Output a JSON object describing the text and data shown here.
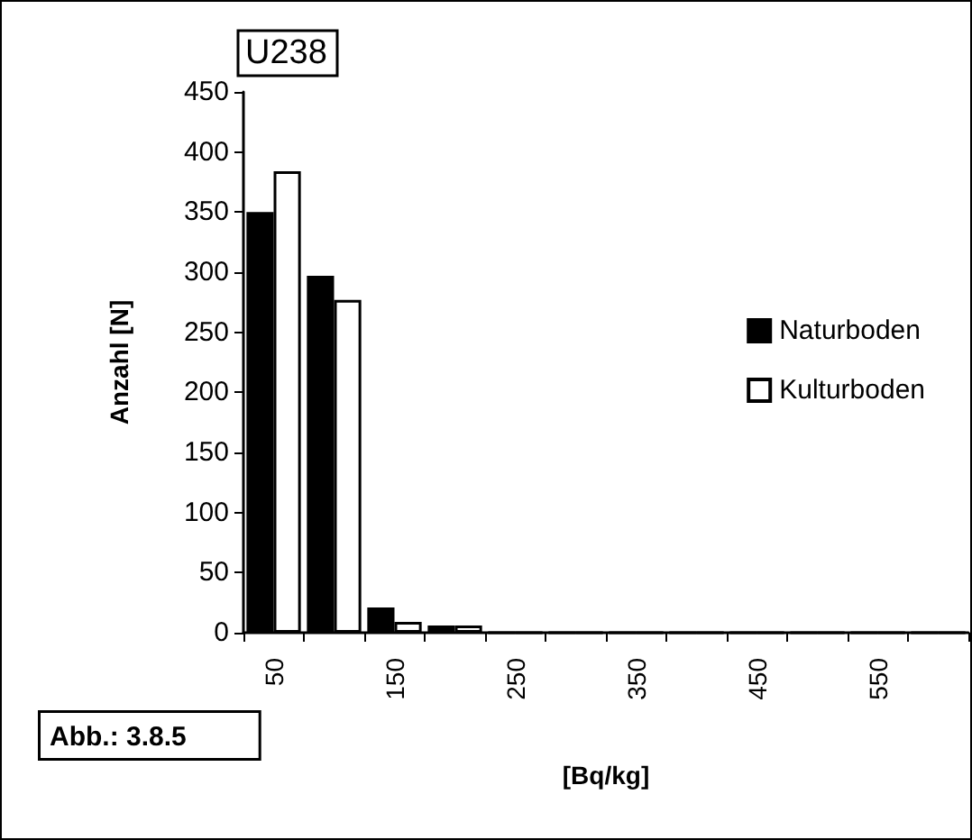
{
  "chart_data": {
    "type": "bar",
    "title": "U238",
    "xlabel": "[Bq/kg]",
    "ylabel": "Anzahl [N]",
    "annotations": [
      "Abb.: 3.8.5"
    ],
    "categories": [
      "50",
      null,
      "150",
      null,
      "250",
      null,
      "350",
      null,
      "450",
      null,
      "550",
      null
    ],
    "series": [
      {
        "name": "Naturboden",
        "color": "#000000",
        "values": [
          350,
          297,
          21,
          6,
          0,
          0,
          0,
          0,
          0,
          0,
          0,
          0
        ]
      },
      {
        "name": "Kulturboden",
        "color": "#ffffff",
        "values": [
          384,
          277,
          9,
          6,
          0,
          0,
          0,
          0,
          0,
          0,
          0,
          0
        ]
      }
    ],
    "ylim": [
      0,
      450
    ],
    "yticks": [
      0,
      50,
      100,
      150,
      200,
      250,
      300,
      350,
      400,
      450
    ],
    "grid": false,
    "legend": "right"
  }
}
